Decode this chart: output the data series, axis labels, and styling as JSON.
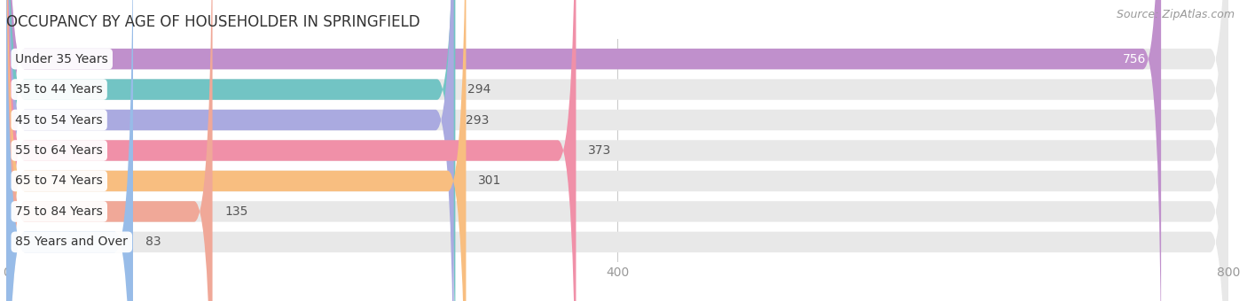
{
  "title": "OCCUPANCY BY AGE OF HOUSEHOLDER IN SPRINGFIELD",
  "source": "Source: ZipAtlas.com",
  "categories": [
    "Under 35 Years",
    "35 to 44 Years",
    "45 to 54 Years",
    "55 to 64 Years",
    "65 to 74 Years",
    "75 to 84 Years",
    "85 Years and Over"
  ],
  "values": [
    756,
    294,
    293,
    373,
    301,
    135,
    83
  ],
  "bar_colors": [
    "#c090cc",
    "#72c4c4",
    "#aaaae0",
    "#f090a8",
    "#f8be80",
    "#f0a898",
    "#98bce8"
  ],
  "bar_bg_color": "#e8e8e8",
  "background_color": "#ffffff",
  "xlim": [
    0,
    800
  ],
  "xticks": [
    0,
    400,
    800
  ],
  "title_fontsize": 12,
  "label_fontsize": 10,
  "value_fontsize": 10,
  "source_fontsize": 9,
  "bar_height": 0.68,
  "value_inside_threshold": 700
}
